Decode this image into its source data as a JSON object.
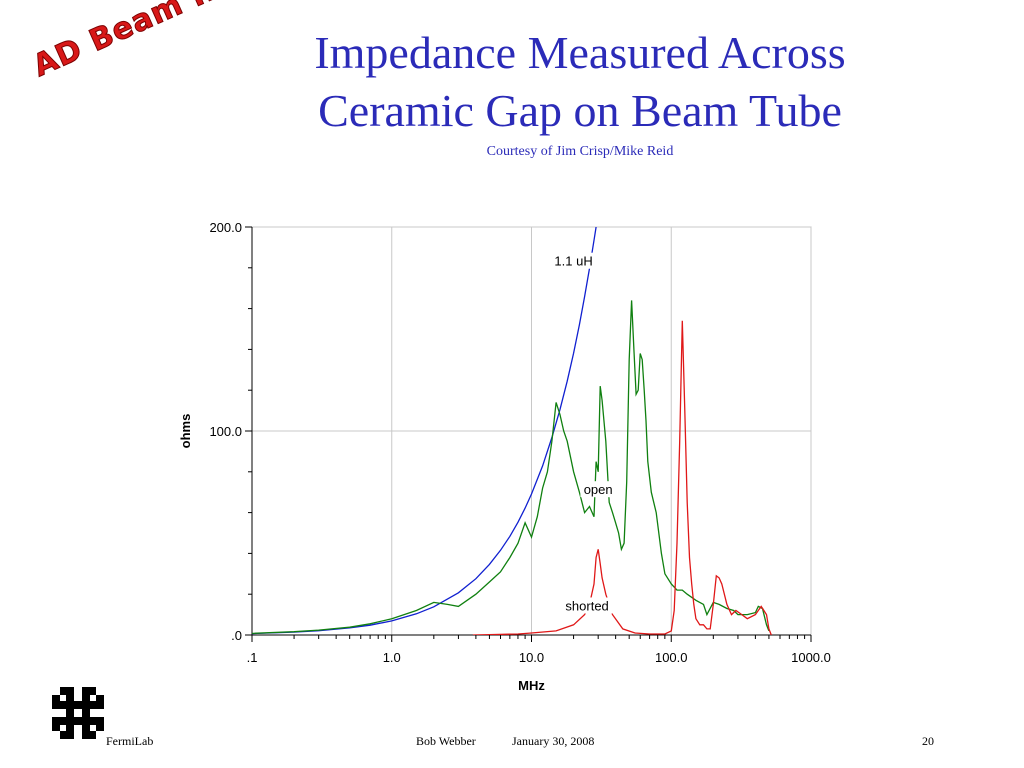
{
  "title_line1": "Impedance Measured Across",
  "title_line2": "Ceramic Gap on Beam Tube",
  "subtitle": "Courtesy of Jim Crisp/Mike Reid",
  "stamp": "AD Beam Inst",
  "footer": {
    "org": "FermiLab",
    "author": "Bob Webber",
    "date": "January 30, 2008",
    "page": "20"
  },
  "colors": {
    "title": "#2b2bb8",
    "inductor": "#1020d0",
    "open": "#108010",
    "shorted": "#e01818",
    "stamp": "#d81818"
  },
  "chart_data": {
    "type": "line",
    "xlabel": "MHz",
    "ylabel": "ohms",
    "xscale": "log",
    "xlim": [
      0.1,
      1000
    ],
    "ylim": [
      0,
      200
    ],
    "x_ticks": [
      ".1",
      "1.0",
      "10.0",
      "100.0",
      "1000.0"
    ],
    "y_ticks": [
      ".0",
      "100.0",
      "200.0"
    ],
    "grid": true,
    "annotations": [
      {
        "text": "1.1 uH",
        "x": 20,
        "y": 182
      },
      {
        "text": "open",
        "x": 30,
        "y": 70
      },
      {
        "text": "shorted",
        "x": 25,
        "y": 13
      }
    ],
    "series": [
      {
        "name": "1.1 uH",
        "color": "#1020d0",
        "style": "solid",
        "points": [
          [
            0.1,
            0.7
          ],
          [
            0.2,
            1.4
          ],
          [
            0.3,
            2.1
          ],
          [
            0.5,
            3.5
          ],
          [
            0.7,
            4.8
          ],
          [
            1,
            6.9
          ],
          [
            1.5,
            10.4
          ],
          [
            2,
            13.8
          ],
          [
            3,
            20.7
          ],
          [
            4,
            27.6
          ],
          [
            5,
            34.6
          ],
          [
            6,
            41.5
          ],
          [
            7,
            48.4
          ],
          [
            8,
            55.3
          ],
          [
            9,
            62.2
          ],
          [
            10,
            69.1
          ],
          [
            12,
            82.9
          ],
          [
            14,
            96.8
          ],
          [
            16,
            110.6
          ],
          [
            18,
            124.4
          ],
          [
            20,
            138.2
          ],
          [
            22,
            152.1
          ],
          [
            24,
            165.9
          ],
          [
            26,
            179.7
          ],
          [
            28,
            193.5
          ],
          [
            29,
            200
          ]
        ]
      },
      {
        "name": "open",
        "color": "#108010",
        "style": "solid",
        "points": [
          [
            0.1,
            0.8
          ],
          [
            0.2,
            1.6
          ],
          [
            0.3,
            2.4
          ],
          [
            0.5,
            3.8
          ],
          [
            0.7,
            5.5
          ],
          [
            1,
            8
          ],
          [
            1.5,
            12
          ],
          [
            2,
            16
          ],
          [
            2.5,
            15
          ],
          [
            3,
            14
          ],
          [
            4,
            20
          ],
          [
            5,
            26
          ],
          [
            6,
            31
          ],
          [
            7,
            38
          ],
          [
            8,
            45
          ],
          [
            9,
            55
          ],
          [
            10,
            48
          ],
          [
            11,
            58
          ],
          [
            12,
            72
          ],
          [
            13,
            80
          ],
          [
            14,
            95
          ],
          [
            15,
            114
          ],
          [
            16,
            108
          ],
          [
            17,
            100
          ],
          [
            18,
            95
          ],
          [
            20,
            80
          ],
          [
            22,
            70
          ],
          [
            24,
            60
          ],
          [
            26,
            63
          ],
          [
            28,
            58
          ],
          [
            29,
            85
          ],
          [
            30,
            80
          ],
          [
            31,
            122
          ],
          [
            32,
            115
          ],
          [
            34,
            95
          ],
          [
            36,
            65
          ],
          [
            38,
            60
          ],
          [
            40,
            55
          ],
          [
            42,
            50
          ],
          [
            44,
            42
          ],
          [
            46,
            45
          ],
          [
            48,
            75
          ],
          [
            50,
            135
          ],
          [
            52,
            164
          ],
          [
            54,
            140
          ],
          [
            56,
            118
          ],
          [
            58,
            120
          ],
          [
            60,
            138
          ],
          [
            62,
            135
          ],
          [
            64,
            120
          ],
          [
            66,
            105
          ],
          [
            68,
            85
          ],
          [
            72,
            70
          ],
          [
            78,
            60
          ],
          [
            85,
            40
          ],
          [
            90,
            30
          ],
          [
            100,
            25
          ],
          [
            110,
            22
          ],
          [
            120,
            22
          ],
          [
            130,
            20
          ],
          [
            150,
            17
          ],
          [
            170,
            15
          ],
          [
            180,
            10
          ],
          [
            200,
            16
          ],
          [
            220,
            15
          ],
          [
            250,
            13
          ],
          [
            280,
            12
          ],
          [
            300,
            10
          ],
          [
            350,
            10
          ],
          [
            400,
            11
          ],
          [
            420,
            14
          ],
          [
            450,
            13
          ],
          [
            480,
            5
          ],
          [
            500,
            2
          ]
        ]
      },
      {
        "name": "shorted",
        "color": "#e01818",
        "style": "solid",
        "points": [
          [
            3.8,
            0
          ],
          [
            5,
            0.2
          ],
          [
            8,
            0.5
          ],
          [
            10,
            1
          ],
          [
            15,
            2
          ],
          [
            20,
            5
          ],
          [
            24,
            10
          ],
          [
            26,
            15
          ],
          [
            28,
            25
          ],
          [
            29,
            38
          ],
          [
            30,
            42
          ],
          [
            31,
            35
          ],
          [
            32,
            28
          ],
          [
            34,
            20
          ],
          [
            38,
            10
          ],
          [
            45,
            3
          ],
          [
            55,
            1
          ],
          [
            70,
            0.5
          ],
          [
            90,
            0.5
          ],
          [
            100,
            2
          ],
          [
            105,
            12
          ],
          [
            110,
            45
          ],
          [
            115,
            95
          ],
          [
            120,
            154
          ],
          [
            125,
            110
          ],
          [
            130,
            65
          ],
          [
            135,
            38
          ],
          [
            140,
            25
          ],
          [
            145,
            15
          ],
          [
            150,
            8
          ],
          [
            160,
            5
          ],
          [
            170,
            5
          ],
          [
            180,
            3
          ],
          [
            190,
            3
          ],
          [
            200,
            15
          ],
          [
            210,
            29
          ],
          [
            220,
            28
          ],
          [
            230,
            25
          ],
          [
            250,
            15
          ],
          [
            270,
            10
          ],
          [
            290,
            12
          ],
          [
            320,
            10
          ],
          [
            350,
            8
          ],
          [
            400,
            10
          ],
          [
            420,
            12
          ],
          [
            440,
            14
          ],
          [
            460,
            12
          ],
          [
            480,
            10
          ],
          [
            500,
            3
          ],
          [
            520,
            0
          ]
        ]
      }
    ]
  }
}
